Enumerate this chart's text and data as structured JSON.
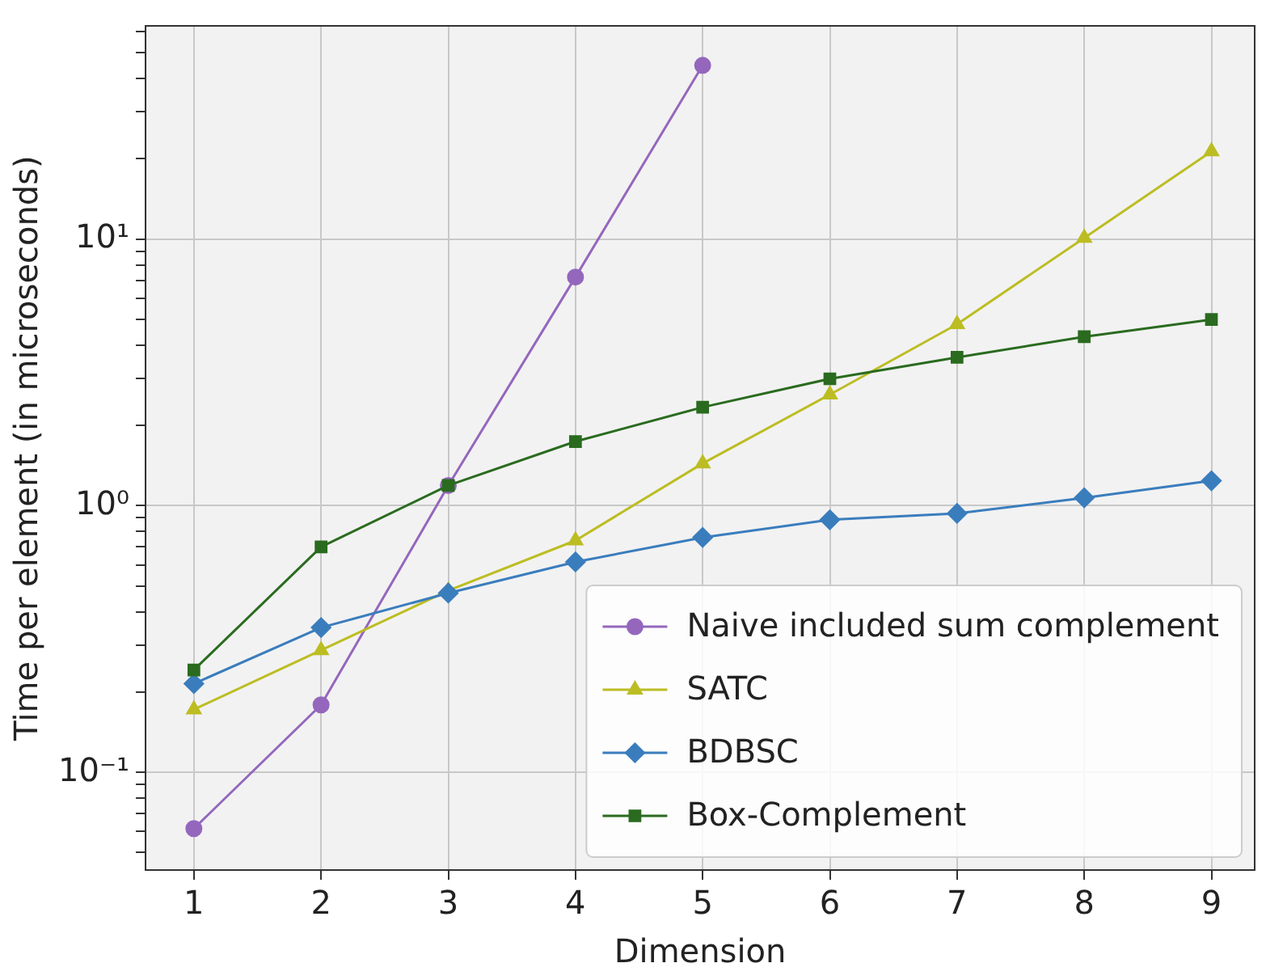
{
  "chart_data": {
    "type": "line",
    "xlabel": "Dimension",
    "ylabel": "Time per element (in microseconds)",
    "log": "y",
    "grid": true,
    "legend": "bottom right",
    "x": [
      1,
      2,
      3,
      4,
      5,
      6,
      7,
      8,
      9
    ],
    "xlim": [
      0.62,
      9.34
    ],
    "xticks": [
      1,
      2,
      3,
      4,
      5,
      6,
      7,
      8,
      9
    ],
    "ylim": [
      0.043,
      63
    ],
    "yticks": [
      {
        "value": 0.05,
        "label": null
      },
      {
        "value": 0.06,
        "label": null
      },
      {
        "value": 0.07,
        "label": null
      },
      {
        "value": 0.08,
        "label": null
      },
      {
        "value": 0.09,
        "label": null
      },
      {
        "value": 0.1,
        "label": "10⁻¹"
      },
      {
        "value": 0.2,
        "label": null
      },
      {
        "value": 0.3,
        "label": null
      },
      {
        "value": 0.4,
        "label": null
      },
      {
        "value": 0.5,
        "label": null
      },
      {
        "value": 0.6,
        "label": null
      },
      {
        "value": 0.7,
        "label": null
      },
      {
        "value": 0.8,
        "label": null
      },
      {
        "value": 0.9,
        "label": null
      },
      {
        "value": 1,
        "label": "10⁰"
      },
      {
        "value": 2,
        "label": null
      },
      {
        "value": 3,
        "label": null
      },
      {
        "value": 4,
        "label": null
      },
      {
        "value": 5,
        "label": null
      },
      {
        "value": 6,
        "label": null
      },
      {
        "value": 7,
        "label": null
      },
      {
        "value": 8,
        "label": null
      },
      {
        "value": 9,
        "label": null
      },
      {
        "value": 10,
        "label": "10¹"
      },
      {
        "value": 20,
        "label": null
      },
      {
        "value": 30,
        "label": null
      },
      {
        "value": 40,
        "label": null
      },
      {
        "value": 50,
        "label": null
      },
      {
        "value": 60,
        "label": null
      }
    ],
    "series": [
      {
        "name": "Naive included sum complement",
        "color": "#9467bd",
        "marker": "circle",
        "x": [
          1,
          2,
          3,
          4,
          5
        ],
        "values": [
          0.0615,
          0.179,
          1.19,
          7.2,
          44.8
        ]
      },
      {
        "name": "SATC",
        "color": "#bcbd22",
        "marker": "triangle",
        "values": [
          0.172,
          0.287,
          0.48,
          0.74,
          1.44,
          2.61,
          4.79,
          10.1,
          21.3
        ]
      },
      {
        "name": "BDBSC",
        "color": "#3a7dbd",
        "marker": "diamond",
        "values": [
          0.215,
          0.349,
          0.47,
          0.615,
          0.76,
          0.885,
          0.935,
          1.07,
          1.24
        ]
      },
      {
        "name": "Box-Complement",
        "color": "#2a6b1f",
        "marker": "square",
        "values": [
          0.242,
          0.7,
          1.19,
          1.74,
          2.34,
          2.99,
          3.6,
          4.3,
          4.99
        ]
      }
    ]
  }
}
